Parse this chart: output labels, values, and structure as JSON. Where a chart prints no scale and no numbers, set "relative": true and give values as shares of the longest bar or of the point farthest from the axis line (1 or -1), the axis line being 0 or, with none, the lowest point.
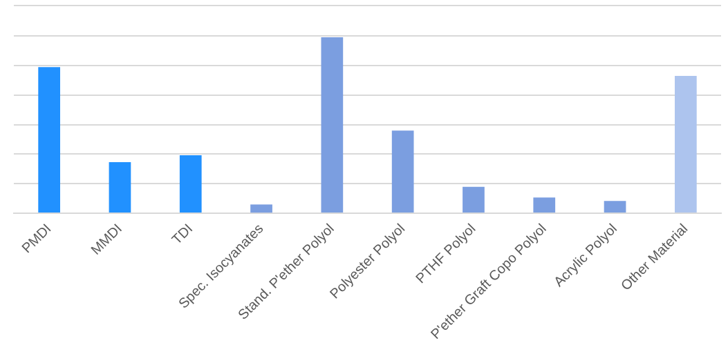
{
  "chart_data": {
    "type": "bar",
    "relative": true,
    "grid": "y",
    "categories": [
      "PMDI",
      "MMDI",
      "TDI",
      "Spec. Isocyanates",
      "Stand. P'ether Polyol",
      "Polyester Polyol",
      "PTHF Polyol",
      "P'ether Graft Copo Polyol",
      "Acrylic Polyol",
      "Other Material"
    ],
    "values": [
      0.83,
      0.29,
      0.33,
      0.05,
      1,
      0.47,
      0.15,
      0.09,
      0.07,
      0.78
    ],
    "colors": [
      "#2191ff",
      "#2191ff",
      "#2191ff",
      "#7b9ee0",
      "#7b9ee0",
      "#7b9ee0",
      "#7b9ee0",
      "#7b9ee0",
      "#7b9ee0",
      "#adc4ee"
    ]
  }
}
